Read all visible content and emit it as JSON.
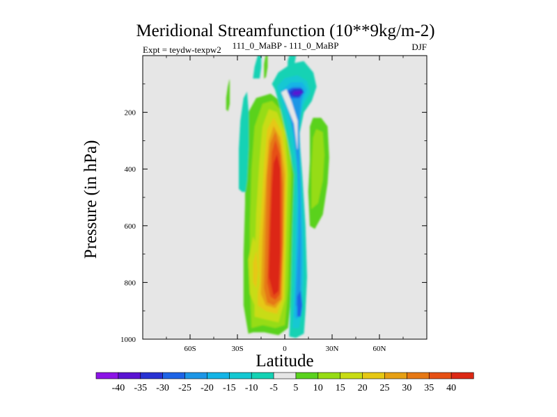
{
  "chart_data": {
    "type": "contour",
    "title": "Meridional Streamfunction (10**9kg/m-2)",
    "subtitle_left": "Expt = teydw-texpw2",
    "subtitle_center": "111_0_MaBP - 111_0_MaBP",
    "subtitle_right": "DJF",
    "xlabel": "Latitude",
    "ylabel": "Pressure (in hPa)",
    "xlim": [
      -90,
      90
    ],
    "ylim": [
      1000,
      0
    ],
    "x_ticks": [
      {
        "value": -60,
        "label": "60S"
      },
      {
        "value": -30,
        "label": "30S"
      },
      {
        "value": 0,
        "label": "0"
      },
      {
        "value": 30,
        "label": "30N"
      },
      {
        "value": 60,
        "label": "60N"
      }
    ],
    "y_ticks": [
      {
        "value": 200,
        "label": "200"
      },
      {
        "value": 400,
        "label": "400"
      },
      {
        "value": 600,
        "label": "600"
      },
      {
        "value": 800,
        "label": "800"
      },
      {
        "value": 1000,
        "label": "1000"
      }
    ],
    "background_color": "#e6e6e6",
    "colorbar": {
      "labels": [
        "-40",
        "-35",
        "-30",
        "-25",
        "-20",
        "-15",
        "-10",
        "-5",
        "5",
        "10",
        "15",
        "20",
        "25",
        "30",
        "35",
        "40"
      ],
      "colors": [
        "#8c14e6",
        "#5a14d2",
        "#2832d2",
        "#1e64e6",
        "#1e96e6",
        "#14b4e6",
        "#14c8d2",
        "#14d2b4",
        "#e6e6e6",
        "#5ad21e",
        "#96dc14",
        "#c8dc14",
        "#e6c814",
        "#e6a014",
        "#e67814",
        "#e65014",
        "#dc2814"
      ]
    },
    "features": [
      {
        "name": "positive cell",
        "lat_range": [
          -25,
          5
        ],
        "pressure_range": [
          60,
          990
        ],
        "max": 40,
        "core_lat": -7,
        "core_pressure": [
          250,
          950
        ]
      },
      {
        "name": "negative cell",
        "lat_range": [
          5,
          15
        ],
        "pressure_range": [
          40,
          980
        ],
        "min": -35,
        "core_lat": 8,
        "core_pressure": 120
      },
      {
        "name": "northern positive cell",
        "lat_range": [
          15,
          28
        ],
        "pressure_range": [
          230,
          600
        ],
        "max": 10
      },
      {
        "name": "weak negative",
        "lat_range": [
          -28,
          -22
        ],
        "pressure_range": [
          130,
          480
        ],
        "min": -10
      },
      {
        "name": "weak positive",
        "lat_range": [
          -37,
          -35
        ],
        "pressure_range": [
          80,
          190
        ],
        "max": 5
      }
    ]
  }
}
